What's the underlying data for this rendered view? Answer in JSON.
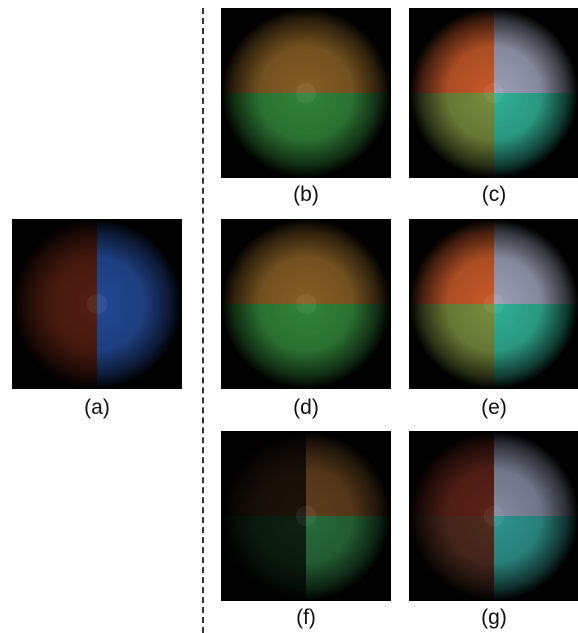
{
  "figure": {
    "panels": [
      {
        "id": "a",
        "label": "(a)",
        "layout": "halves-lr",
        "quadrants": {
          "tl": "#6e2818",
          "tr": "#2f62c8",
          "bl": "#6e2818",
          "br": "#2f62c8"
        },
        "intensity": 0.75
      },
      {
        "id": "b",
        "label": "(b)",
        "layout": "halves-tb",
        "quadrants": {
          "tl": "#a8762e",
          "tr": "#a8762e",
          "bl": "#3ea648",
          "br": "#3ea648"
        },
        "intensity": 0.8
      },
      {
        "id": "c",
        "label": "(c)",
        "layout": "quad",
        "quadrants": {
          "tl": "#ec6a32",
          "tr": "#b8bcd6",
          "bl": "#8fa64a",
          "br": "#3ad2b0"
        },
        "intensity": 0.85
      },
      {
        "id": "d",
        "label": "(d)",
        "layout": "halves-tb",
        "quadrants": {
          "tl": "#a8762e",
          "tr": "#a8762e",
          "bl": "#3ea648",
          "br": "#3ea648"
        },
        "intensity": 0.8
      },
      {
        "id": "e",
        "label": "(e)",
        "layout": "quad",
        "quadrants": {
          "tl": "#ec6a32",
          "tr": "#b8bcd6",
          "bl": "#8fa64a",
          "br": "#3ad2b0"
        },
        "intensity": 0.85
      },
      {
        "id": "f",
        "label": "(f)",
        "layout": "quad",
        "quadrants": {
          "tl": "#2a1a10",
          "tr": "#8a5a2a",
          "bl": "#14301a",
          "br": "#3a9a54"
        },
        "intensity": 0.7
      },
      {
        "id": "g",
        "label": "(g)",
        "layout": "quad",
        "quadrants": {
          "tl": "#7a2e22",
          "tr": "#b0b8d6",
          "bl": "#6a3a2a",
          "br": "#40c8c0"
        },
        "intensity": 0.75
      }
    ]
  }
}
